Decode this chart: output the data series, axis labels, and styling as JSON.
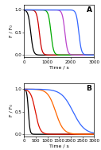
{
  "panel_A": {
    "label": "A",
    "curves": [
      {
        "color": "#000000",
        "t_mid": 280,
        "k": 0.018
      },
      {
        "color": "#cc0000",
        "t_mid": 650,
        "k": 0.018
      },
      {
        "color": "#00aa00",
        "t_mid": 1150,
        "k": 0.018
      },
      {
        "color": "#bb44cc",
        "t_mid": 1750,
        "k": 0.018
      },
      {
        "color": "#3366ff",
        "t_mid": 2350,
        "k": 0.018
      }
    ],
    "xlim": [
      0,
      3000
    ],
    "ylim": [
      -0.05,
      1.12
    ],
    "xticks": [
      0,
      1000,
      2000,
      3000
    ],
    "yticks": [
      0.0,
      0.5,
      1.0
    ],
    "xlabel": "Time / s",
    "ylabel": "F / F₀"
  },
  "panel_B": {
    "label": "B",
    "curves": [
      {
        "color": "#000000",
        "t_mid": 180,
        "k": 0.03
      },
      {
        "color": "#dd1100",
        "t_mid": 480,
        "k": 0.01
      },
      {
        "color": "#ff6600",
        "t_mid": 1350,
        "k": 0.006
      },
      {
        "color": "#3366ff",
        "t_mid": 2100,
        "k": 0.004
      }
    ],
    "xlim": [
      0,
      3000
    ],
    "ylim": [
      -0.05,
      1.12
    ],
    "xticks": [
      0,
      500,
      1000,
      1500,
      2000,
      2500,
      3000
    ],
    "yticks": [
      0.0,
      0.5,
      1.0
    ],
    "xlabel": "Time / s",
    "ylabel": "F / F₀"
  },
  "background_color": "#ffffff",
  "linewidth": 0.9,
  "tick_fontsize": 4.0,
  "label_fontsize": 4.5,
  "panel_label_fontsize": 6.5
}
